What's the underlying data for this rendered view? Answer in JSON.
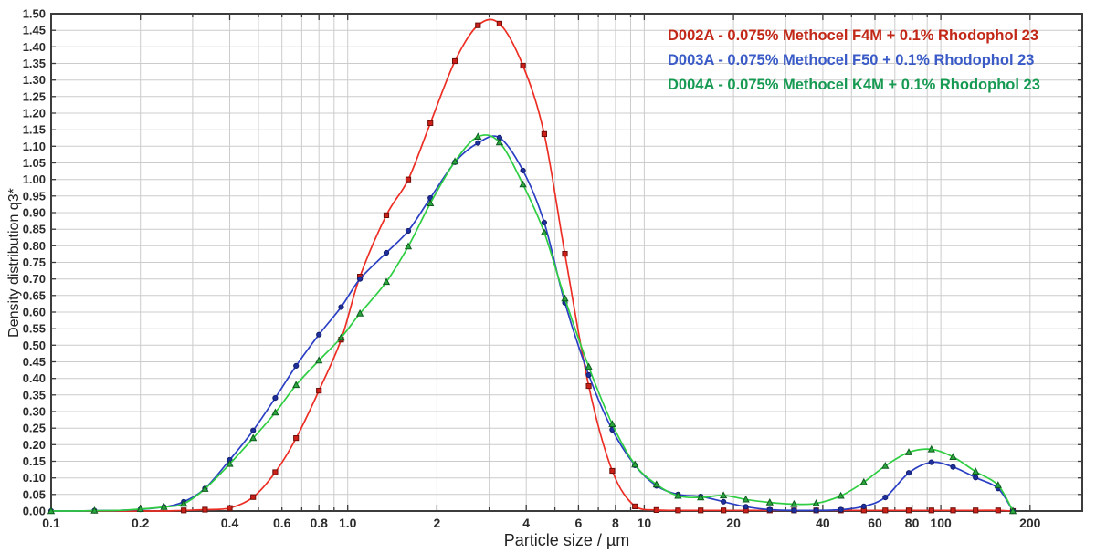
{
  "chart_data": {
    "type": "line",
    "title": "",
    "xlabel": "Particle size / µm",
    "ylabel": "Density distribution q3*",
    "x_scale": "log",
    "xlim": [
      0.1,
      300
    ],
    "ylim": [
      0,
      1.5
    ],
    "y_tick_step": 0.05,
    "grid": true,
    "legend_position": "top-right",
    "x_ticks": [
      {
        "v": 0.1,
        "t": "0.1"
      },
      {
        "v": 0.2,
        "t": "0.2"
      },
      {
        "v": 0.4,
        "t": "0.4"
      },
      {
        "v": 0.6,
        "t": "0.6"
      },
      {
        "v": 0.8,
        "t": "0.8"
      },
      {
        "v": 1,
        "t": "1.0"
      },
      {
        "v": 2,
        "t": "2"
      },
      {
        "v": 4,
        "t": "4"
      },
      {
        "v": 6,
        "t": "6"
      },
      {
        "v": 8,
        "t": "8"
      },
      {
        "v": 10,
        "t": "10"
      },
      {
        "v": 20,
        "t": "20"
      },
      {
        "v": 40,
        "t": "40"
      },
      {
        "v": 60,
        "t": "60"
      },
      {
        "v": 80,
        "t": "80"
      },
      {
        "v": 100,
        "t": "100"
      },
      {
        "v": 200,
        "t": "200"
      }
    ],
    "sizes_um": [
      0.1,
      0.12,
      0.14,
      0.17,
      0.2,
      0.24,
      0.28,
      0.33,
      0.4,
      0.48,
      0.57,
      0.67,
      0.8,
      0.95,
      1.1,
      1.35,
      1.6,
      1.9,
      2.3,
      2.75,
      3.25,
      3.9,
      4.6,
      5.4,
      6.5,
      7.8,
      9.3,
      11,
      13,
      15.5,
      18.5,
      22,
      26.5,
      32,
      38,
      46,
      55,
      65,
      78,
      93,
      110,
      131,
      156,
      175
    ],
    "marker_skip_sizes": [
      0.12,
      0.17
    ],
    "series": [
      {
        "id": "D002A",
        "label": "D002A - 0.075% Methocel F4M + 0.1% Rhodophol 23",
        "legend_color": "#C22818",
        "curve_color": "#ED2E24",
        "marker_fill": "#CC2018",
        "marker_stroke": "#6E0F0A",
        "marker": "square",
        "first_marker_size": 0.28,
        "values": [
          0,
          0,
          0,
          0,
          0,
          0,
          0.002,
          0.004,
          0.009,
          0.042,
          0.117,
          0.22,
          0.363,
          0.517,
          0.707,
          0.892,
          1.0,
          1.17,
          1.357,
          1.465,
          1.47,
          1.343,
          1.137,
          0.776,
          0.377,
          0.121,
          0.014,
          0.003,
          0.002,
          0.002,
          0.002,
          0.002,
          0.002,
          0.002,
          0.002,
          0.002,
          0.002,
          0.002,
          0.002,
          0.002,
          0.002,
          0.002,
          0.002,
          0
        ]
      },
      {
        "id": "D003A",
        "label": "D003A - 0.075% Methocel F50 + 0.1% Rhodophol 23",
        "legend_color": "#3A5BC7",
        "curve_color": "#2B3FC4",
        "marker_fill": "#1E2F9E",
        "marker_stroke": "#14206E",
        "marker": "circle",
        "first_marker_size": 0.1,
        "values": [
          0,
          0,
          0.001,
          0.002,
          0.005,
          0.012,
          0.028,
          0.068,
          0.154,
          0.243,
          0.341,
          0.438,
          0.532,
          0.615,
          0.7,
          0.779,
          0.845,
          0.944,
          1.052,
          1.11,
          1.126,
          1.027,
          0.87,
          0.628,
          0.41,
          0.245,
          0.138,
          0.076,
          0.05,
          0.044,
          0.028,
          0.013,
          0.004,
          0.002,
          0.002,
          0.004,
          0.014,
          0.041,
          0.115,
          0.147,
          0.133,
          0.101,
          0.068,
          0
        ]
      },
      {
        "id": "D004A",
        "label": "D004A - 0.075% Methocel K4M + 0.1% Rhodophol 23",
        "legend_color": "#169A52",
        "curve_color": "#2FCE42",
        "marker_fill": "#2AA83C",
        "marker_stroke": "#0E5A20",
        "marker": "triangle",
        "first_marker_size": 0.1,
        "values": [
          0,
          0,
          0.001,
          0.002,
          0.006,
          0.012,
          0.022,
          0.067,
          0.142,
          0.22,
          0.297,
          0.38,
          0.454,
          0.523,
          0.596,
          0.691,
          0.798,
          0.928,
          1.054,
          1.129,
          1.112,
          0.985,
          0.84,
          0.641,
          0.435,
          0.262,
          0.14,
          0.08,
          0.046,
          0.041,
          0.047,
          0.035,
          0.026,
          0.021,
          0.023,
          0.046,
          0.087,
          0.136,
          0.177,
          0.186,
          0.163,
          0.119,
          0.078,
          0
        ]
      }
    ],
    "styles": {
      "grid_color": "#cccccc",
      "border_color": "#3c3c3c",
      "tick_color": "#3c3c3c",
      "label_color": "#2b2b2b",
      "background": "#ffffff"
    }
  }
}
